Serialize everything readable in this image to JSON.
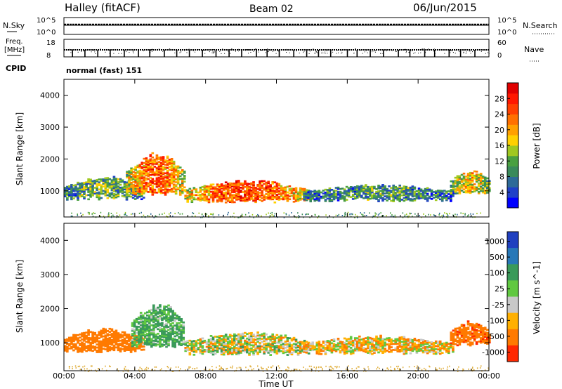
{
  "header": {
    "title": "Halley (fitACF)",
    "beam": "Beam 02",
    "date": "06/Jun/2015"
  },
  "status_panels": {
    "nsky_label": "N.Sky",
    "nsearch_label": "N.Search",
    "nsky_ticks": [
      "10^5",
      "10^0"
    ],
    "nsearch_ticks": [
      "10^5",
      "10^0"
    ],
    "freq_label_1": "Freq.",
    "freq_label_2": "[MHz]",
    "freq_ticks": [
      "18",
      "8"
    ],
    "nave_label": "Nave",
    "nave_ticks": [
      "60",
      "0"
    ],
    "cpid_label": "CPID",
    "cpid_value": "normal (fast) 151"
  },
  "chart_data": [
    {
      "type": "heatmap",
      "quantity": "Power",
      "ylabel": "Slant Range [km]",
      "xlabel": "Time UT",
      "x_ticks": [
        "00:00",
        "04:00",
        "08:00",
        "12:00",
        "16:00",
        "20:00",
        "00:00"
      ],
      "x_range_hours": [
        0,
        24
      ],
      "y_ticks": [
        1000,
        2000,
        3000,
        4000
      ],
      "y_range_km": [
        180,
        4500
      ],
      "colorbar": {
        "label": "Power [dB]",
        "ticks": [
          "4",
          "8",
          "12",
          "16",
          "20",
          "24",
          "28"
        ],
        "range": [
          0,
          32
        ],
        "colors": [
          "#0000ff",
          "#2040c8",
          "#2e6a98",
          "#3a8a5a",
          "#4aa040",
          "#a0c820",
          "#ffd000",
          "#ffa000",
          "#ff7000",
          "#ff4000",
          "#ff1800",
          "#e00000"
        ]
      },
      "regions": [
        {
          "t": [
            0.0,
            4.5
          ],
          "r": [
            700,
            1450
          ],
          "level": 12
        },
        {
          "t": [
            3.5,
            6.8
          ],
          "r": [
            850,
            2200
          ],
          "level": 24
        },
        {
          "t": [
            6.8,
            13.8
          ],
          "r": [
            620,
            1350
          ],
          "level": 26
        },
        {
          "t": [
            13.5,
            22.0
          ],
          "r": [
            650,
            1200
          ],
          "level": 10
        },
        {
          "t": [
            21.8,
            24.0
          ],
          "r": [
            900,
            1650
          ],
          "level": 18
        }
      ]
    },
    {
      "type": "heatmap",
      "quantity": "Velocity",
      "ylabel": "Slant Range [km]",
      "xlabel": "Time UT",
      "x_ticks": [
        "00:00",
        "04:00",
        "08:00",
        "12:00",
        "16:00",
        "20:00",
        "00:00"
      ],
      "x_range_hours": [
        0,
        24
      ],
      "y_ticks": [
        1000,
        2000,
        3000,
        4000
      ],
      "y_range_km": [
        180,
        4500
      ],
      "colorbar": {
        "label": "Velocity [m s^-1]",
        "ticks": [
          "1000",
          "500",
          "100",
          "25",
          "-25",
          "-100",
          "-500",
          "-1000"
        ],
        "colors": [
          "#2040c0",
          "#2878b8",
          "#3a9a5a",
          "#60c840",
          "#c8c8c8",
          "#ffb000",
          "#ff7a00",
          "#ff2800"
        ]
      },
      "regions": [
        {
          "t": [
            0.0,
            4.5
          ],
          "r": [
            700,
            1450
          ],
          "v": -300
        },
        {
          "t": [
            3.8,
            6.8
          ],
          "r": [
            850,
            2200
          ],
          "v": 150
        },
        {
          "t": [
            6.8,
            13.8
          ],
          "r": [
            620,
            1350
          ],
          "v": 0
        },
        {
          "t": [
            13.5,
            22.0
          ],
          "r": [
            650,
            1200
          ],
          "v": -60
        },
        {
          "t": [
            21.8,
            24.0
          ],
          "r": [
            900,
            1650
          ],
          "v": -400
        }
      ]
    }
  ]
}
